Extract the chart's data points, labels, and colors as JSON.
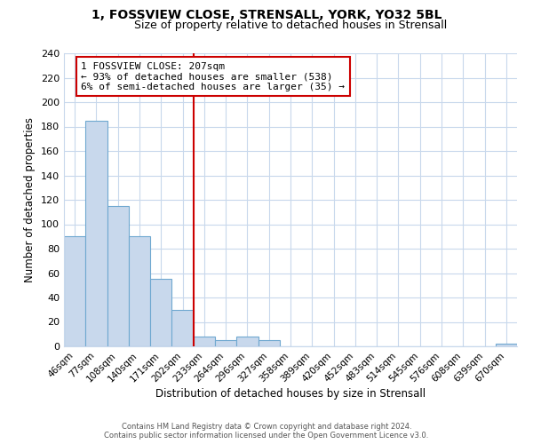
{
  "title": "1, FOSSVIEW CLOSE, STRENSALL, YORK, YO32 5BL",
  "subtitle": "Size of property relative to detached houses in Strensall",
  "xlabel": "Distribution of detached houses by size in Strensall",
  "ylabel": "Number of detached properties",
  "bar_labels": [
    "46sqm",
    "77sqm",
    "108sqm",
    "140sqm",
    "171sqm",
    "202sqm",
    "233sqm",
    "264sqm",
    "296sqm",
    "327sqm",
    "358sqm",
    "389sqm",
    "420sqm",
    "452sqm",
    "483sqm",
    "514sqm",
    "545sqm",
    "576sqm",
    "608sqm",
    "639sqm",
    "670sqm"
  ],
  "bar_values": [
    90,
    185,
    115,
    90,
    55,
    30,
    8,
    5,
    8,
    5,
    0,
    0,
    0,
    0,
    0,
    0,
    0,
    0,
    0,
    0,
    2
  ],
  "bar_color": "#c8d8ec",
  "bar_edge_color": "#6fa8d0",
  "vline_color": "#cc0000",
  "ylim": [
    0,
    240
  ],
  "yticks": [
    0,
    20,
    40,
    60,
    80,
    100,
    120,
    140,
    160,
    180,
    200,
    220,
    240
  ],
  "annotation_title": "1 FOSSVIEW CLOSE: 207sqm",
  "annotation_line1": "← 93% of detached houses are smaller (538)",
  "annotation_line2": "6% of semi-detached houses are larger (35) →",
  "annotation_box_color": "#ffffff",
  "annotation_box_edge": "#cc0000",
  "footer_line1": "Contains HM Land Registry data © Crown copyright and database right 2024.",
  "footer_line2": "Contains public sector information licensed under the Open Government Licence v3.0.",
  "background_color": "#ffffff",
  "grid_color": "#c8d8ec"
}
